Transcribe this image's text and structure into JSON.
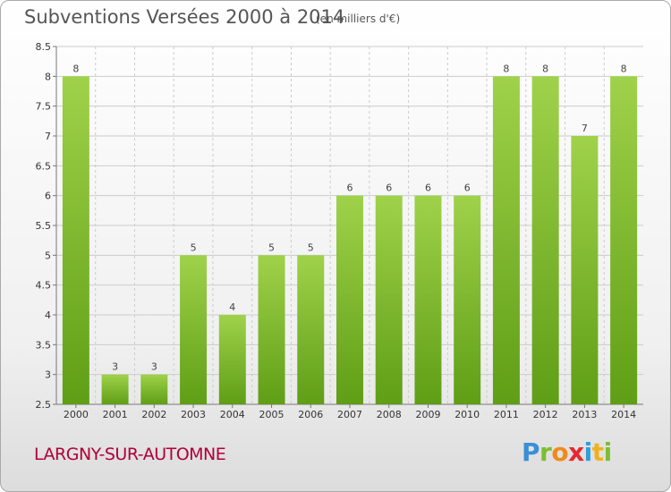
{
  "header": {
    "title": "Subventions Versées 2000 à 2014",
    "unit": "(en milliers d'€)"
  },
  "footer": {
    "commune": "LARGNY-SUR-AUTOMNE",
    "logo": "Proxiti"
  },
  "colors": {
    "bar_light": "#9fd24a",
    "bar_dark": "#5f9e16",
    "grid": "#cccccc",
    "commune_text": "#b0003a"
  },
  "chart_data": {
    "type": "bar",
    "categories": [
      "2000",
      "2001",
      "2002",
      "2003",
      "2004",
      "2005",
      "2006",
      "2007",
      "2008",
      "2009",
      "2010",
      "2011",
      "2012",
      "2013",
      "2014"
    ],
    "values": [
      8,
      3,
      3,
      5,
      4,
      5,
      5,
      6,
      6,
      6,
      6,
      8,
      8,
      7,
      8
    ],
    "ylim": [
      2.5,
      8.5
    ],
    "yticks": [
      2.5,
      3,
      3.5,
      4,
      4.5,
      5,
      5.5,
      6,
      6.5,
      7,
      7.5,
      8,
      8.5
    ],
    "ytick_labels": [
      "2.5",
      "3",
      "3.5",
      "4",
      "4.5",
      "5",
      "5.5",
      "6",
      "6.5",
      "7",
      "7.5",
      "8",
      "8.5"
    ],
    "grid": true,
    "data_labels": true,
    "legend": "none"
  }
}
